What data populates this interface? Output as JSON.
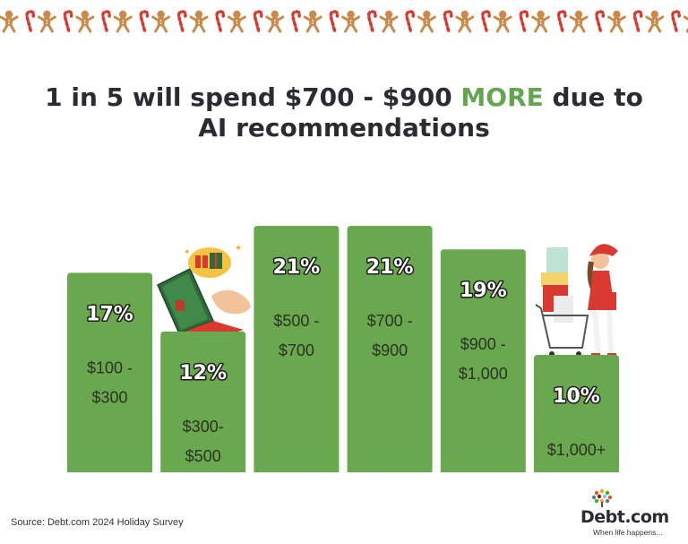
{
  "title": {
    "part1": "1 in 5 will spend $700 - $900 ",
    "highlight": "MORE",
    "part2": " due to",
    "line2": "AI recommendations"
  },
  "colors": {
    "bar": "#6aa84f",
    "highlight": "#65a451"
  },
  "chart_data": {
    "type": "bar",
    "categories": [
      [
        "$100 -",
        "$300"
      ],
      [
        "$300-",
        "$500"
      ],
      [
        "$500 -",
        "$700"
      ],
      [
        "$700 -",
        "$900"
      ],
      [
        "$900 -",
        "$1,000"
      ],
      [
        "$1,000+"
      ]
    ],
    "values": [
      17,
      12,
      21,
      21,
      19,
      10
    ],
    "value_labels": [
      "17%",
      "12%",
      "21%",
      "21%",
      "19%",
      "10%"
    ],
    "ylim": [
      0,
      21
    ],
    "grid": false,
    "legend": "none"
  },
  "source": "Source: Debt.com 2024 Holiday Survey",
  "logo": {
    "name": "Debt.com",
    "tagline": "When life happens..."
  },
  "illustrations": [
    "gingerbread-icon",
    "candy-cane-icon",
    "laptop-gift-icon",
    "shopper-woman-icon"
  ]
}
